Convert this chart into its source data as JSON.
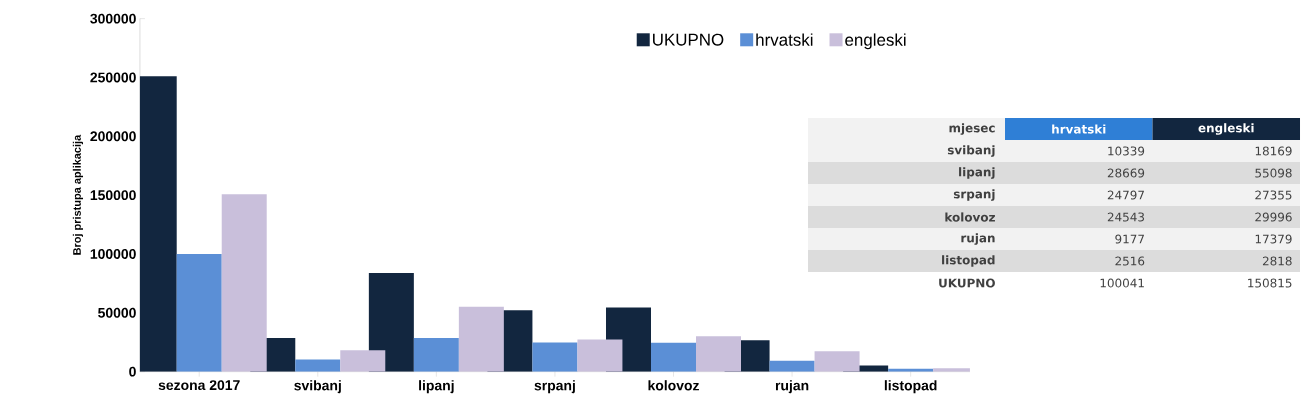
{
  "chart_data": {
    "type": "bar",
    "ylabel": "Broj pristupa aplikacija",
    "categories": [
      "sezona 2017",
      "svibanj",
      "lipanj",
      "srpanj",
      "kolovoz",
      "rujan",
      "listopad"
    ],
    "series": [
      {
        "name": "UKUPNO",
        "color": "#12263f",
        "values": [
          251000,
          28500,
          83800,
          52200,
          54500,
          26600,
          5300
        ]
      },
      {
        "name": "hrvatski",
        "color": "#5b8fd6",
        "values": [
          100041,
          10339,
          28669,
          24797,
          24543,
          9177,
          2516
        ]
      },
      {
        "name": "engleski",
        "color": "#c9bfdb",
        "values": [
          150815,
          18169,
          55098,
          27355,
          29996,
          17379,
          2818
        ]
      }
    ],
    "ylim": [
      0,
      300000
    ],
    "yticks": [
      0,
      50000,
      100000,
      150000,
      200000,
      250000,
      300000
    ],
    "legend": "top right",
    "grid": false,
    "annotations": [
      "mjesec",
      "10339",
      "18169",
      "28669",
      "55098",
      "24797",
      "27355",
      "24543",
      "29996",
      "9177",
      "17379",
      "2516",
      "2818",
      "100041",
      "150815"
    ]
  }
}
